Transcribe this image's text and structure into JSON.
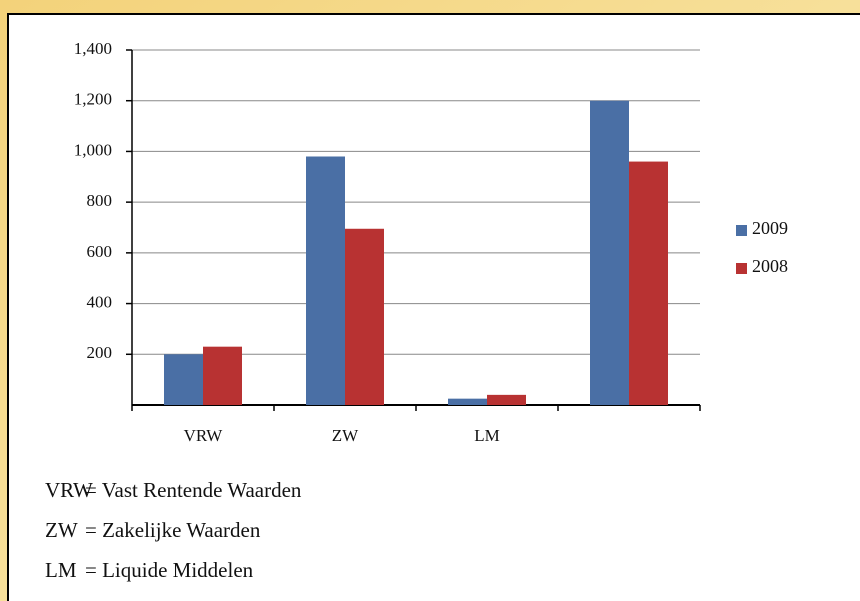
{
  "chart_data": {
    "type": "bar",
    "categories": [
      "VRW",
      "ZW",
      "LM",
      null
    ],
    "series": [
      {
        "name": "2009",
        "color": "#4a6fa5",
        "values": [
          200,
          980,
          25,
          1200
        ]
      },
      {
        "name": "2008",
        "color": "#b83232",
        "values": [
          230,
          695,
          40,
          960
        ]
      }
    ],
    "ylim": [
      0,
      1400
    ],
    "yticks": [
      200,
      400,
      600,
      800,
      {
        "value": 1000,
        "label": "1,000"
      },
      {
        "value": 1200,
        "label": "1,200"
      },
      {
        "value": 1400,
        "label": "1,400"
      }
    ],
    "grid": true,
    "legend": "right",
    "annotations": [
      {
        "abbr": "VRW",
        "text": "= Vast Rentende Waarden"
      },
      {
        "abbr": "ZW",
        "text": "= Zakelijke Waarden"
      },
      {
        "abbr": "LM",
        "text": "= Liquide Middelen"
      }
    ]
  }
}
